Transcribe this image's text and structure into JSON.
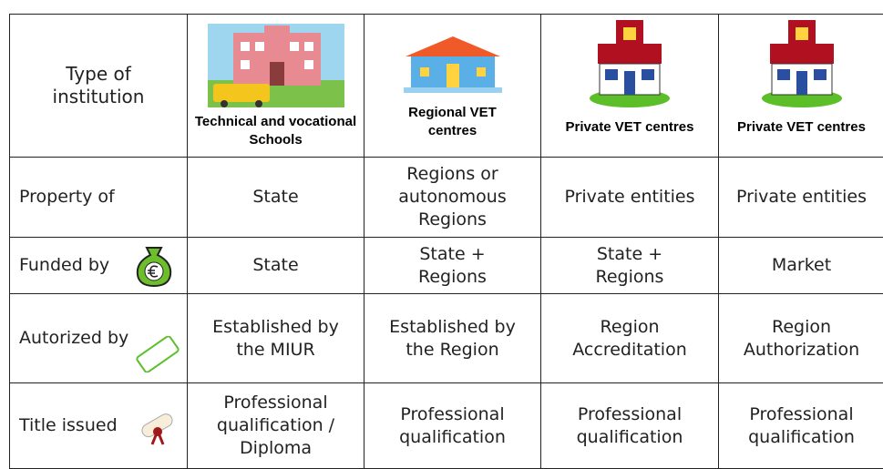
{
  "table": {
    "header": [
      "Type of institution",
      "Technical and vocational Schools",
      "Regional VET centres",
      "Private VET centres",
      "Private VET centres"
    ],
    "rows": [
      [
        "Property of",
        "State",
        "Regions or autonomous Regions",
        "Private entities",
        "Private entities"
      ],
      [
        "Funded by",
        "State",
        "State + Regions",
        "State + Regions",
        "Market"
      ],
      [
        "Autorized by",
        "Established by the MIUR",
        "Established by the Region",
        "Region Accreditation",
        "Region Authorization"
      ],
      [
        "Title issued",
        "Professional qualification / Diploma",
        "Professional qualification",
        "Professional qualification",
        "Professional qualification"
      ]
    ]
  }
}
